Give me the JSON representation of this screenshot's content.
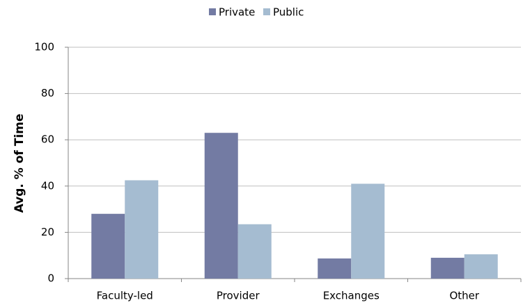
{
  "chart_data": {
    "type": "bar",
    "y_label": "Avg. % of Time",
    "categories": [
      "Faculty-led",
      "Provider",
      "Exchanges",
      "Other"
    ],
    "series": [
      {
        "name": "Private",
        "color": "#737ba3",
        "values": [
          28,
          63,
          8.7,
          9
        ]
      },
      {
        "name": "Public",
        "color": "#a5bcd1",
        "values": [
          42.5,
          23.5,
          41,
          10.5
        ]
      }
    ],
    "ylim": [
      0,
      100
    ],
    "yticks": [
      0,
      20,
      40,
      60,
      80,
      100
    ],
    "grid": true,
    "legend": "top"
  }
}
